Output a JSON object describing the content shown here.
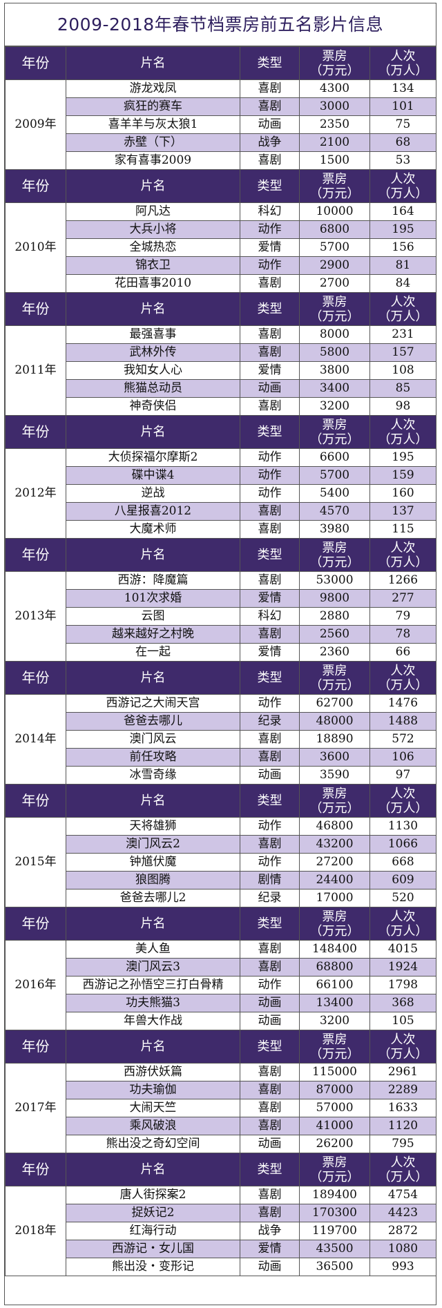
{
  "title": "2009-2018年春节档票房前五名影片信息",
  "header": {
    "year": "年份",
    "film": "片名",
    "genre": "类型",
    "box_office_line1": "票房",
    "box_office_line2": "（万元）",
    "admissions_line1": "人次",
    "admissions_line2": "（万人）"
  },
  "years": [
    {
      "year": "2009年",
      "films": [
        {
          "name": "游龙戏凤",
          "genre": "喜剧",
          "box_office": "4300",
          "admissions": "134"
        },
        {
          "name": "疯狂的赛车",
          "genre": "喜剧",
          "box_office": "3000",
          "admissions": "101"
        },
        {
          "name": "喜羊羊与灰太狼1",
          "genre": "动画",
          "box_office": "2350",
          "admissions": "75"
        },
        {
          "name": "赤壁（下）",
          "genre": "战争",
          "box_office": "2100",
          "admissions": "68"
        },
        {
          "name": "家有喜事2009",
          "genre": "喜剧",
          "box_office": "1500",
          "admissions": "53"
        }
      ]
    },
    {
      "year": "2010年",
      "films": [
        {
          "name": "阿凡达",
          "genre": "科幻",
          "box_office": "10000",
          "admissions": "164"
        },
        {
          "name": "大兵小将",
          "genre": "动作",
          "box_office": "6800",
          "admissions": "195"
        },
        {
          "name": "全城热恋",
          "genre": "爱情",
          "box_office": "5700",
          "admissions": "156"
        },
        {
          "name": "锦衣卫",
          "genre": "动作",
          "box_office": "2900",
          "admissions": "81"
        },
        {
          "name": "花田喜事2010",
          "genre": "喜剧",
          "box_office": "2700",
          "admissions": "84"
        }
      ]
    },
    {
      "year": "2011年",
      "films": [
        {
          "name": "最强喜事",
          "genre": "喜剧",
          "box_office": "8000",
          "admissions": "231"
        },
        {
          "name": "武林外传",
          "genre": "喜剧",
          "box_office": "5800",
          "admissions": "157"
        },
        {
          "name": "我知女人心",
          "genre": "爱情",
          "box_office": "3800",
          "admissions": "108"
        },
        {
          "name": "熊猫总动员",
          "genre": "动画",
          "box_office": "3400",
          "admissions": "85"
        },
        {
          "name": "神奇侠侣",
          "genre": "喜剧",
          "box_office": "3200",
          "admissions": "98"
        }
      ]
    },
    {
      "year": "2012年",
      "films": [
        {
          "name": "大侦探福尔摩斯2",
          "genre": "动作",
          "box_office": "6600",
          "admissions": "195"
        },
        {
          "name": "碟中谍4",
          "genre": "动作",
          "box_office": "5700",
          "admissions": "159"
        },
        {
          "name": "逆战",
          "genre": "动作",
          "box_office": "5400",
          "admissions": "160"
        },
        {
          "name": "八星报喜2012",
          "genre": "喜剧",
          "box_office": "4570",
          "admissions": "137"
        },
        {
          "name": "大魔术师",
          "genre": "喜剧",
          "box_office": "3980",
          "admissions": "115"
        }
      ]
    },
    {
      "year": "2013年",
      "films": [
        {
          "name": "西游：降魔篇",
          "genre": "喜剧",
          "box_office": "53000",
          "admissions": "1266"
        },
        {
          "name": "101次求婚",
          "genre": "爱情",
          "box_office": "9800",
          "admissions": "277"
        },
        {
          "name": "云图",
          "genre": "科幻",
          "box_office": "2880",
          "admissions": "79"
        },
        {
          "name": "越来越好之村晚",
          "genre": "喜剧",
          "box_office": "2560",
          "admissions": "78"
        },
        {
          "name": "在一起",
          "genre": "爱情",
          "box_office": "2360",
          "admissions": "66"
        }
      ]
    },
    {
      "year": "2014年",
      "films": [
        {
          "name": "西游记之大闹天宫",
          "genre": "动作",
          "box_office": "62700",
          "admissions": "1476"
        },
        {
          "name": "爸爸去哪儿",
          "genre": "纪录",
          "box_office": "48000",
          "admissions": "1488"
        },
        {
          "name": "澳门风云",
          "genre": "喜剧",
          "box_office": "18890",
          "admissions": "572"
        },
        {
          "name": "前任攻略",
          "genre": "喜剧",
          "box_office": "3600",
          "admissions": "106"
        },
        {
          "name": "冰雪奇缘",
          "genre": "动画",
          "box_office": "3590",
          "admissions": "97"
        }
      ]
    },
    {
      "year": "2015年",
      "films": [
        {
          "name": "天将雄狮",
          "genre": "动作",
          "box_office": "46800",
          "admissions": "1130"
        },
        {
          "name": "澳门风云2",
          "genre": "喜剧",
          "box_office": "43200",
          "admissions": "1066"
        },
        {
          "name": "钟馗伏魔",
          "genre": "动作",
          "box_office": "27200",
          "admissions": "668"
        },
        {
          "name": "狼图腾",
          "genre": "剧情",
          "box_office": "24400",
          "admissions": "609"
        },
        {
          "name": "爸爸去哪儿2",
          "genre": "纪录",
          "box_office": "17000",
          "admissions": "520"
        }
      ]
    },
    {
      "year": "2016年",
      "films": [
        {
          "name": "美人鱼",
          "genre": "喜剧",
          "box_office": "148400",
          "admissions": "4015"
        },
        {
          "name": "澳门风云3",
          "genre": "喜剧",
          "box_office": "68800",
          "admissions": "1924"
        },
        {
          "name": "西游记之孙悟空三打白骨精",
          "genre": "动作",
          "box_office": "66100",
          "admissions": "1798"
        },
        {
          "name": "功夫熊猫3",
          "genre": "动画",
          "box_office": "13400",
          "admissions": "368"
        },
        {
          "name": "年兽大作战",
          "genre": "动画",
          "box_office": "3200",
          "admissions": "105"
        }
      ]
    },
    {
      "year": "2017年",
      "films": [
        {
          "name": "西游伏妖篇",
          "genre": "喜剧",
          "box_office": "115000",
          "admissions": "2961"
        },
        {
          "name": "功夫瑜伽",
          "genre": "喜剧",
          "box_office": "87000",
          "admissions": "2289"
        },
        {
          "name": "大闹天竺",
          "genre": "喜剧",
          "box_office": "57000",
          "admissions": "1633"
        },
        {
          "name": "乘风破浪",
          "genre": "喜剧",
          "box_office": "41000",
          "admissions": "1120"
        },
        {
          "name": "熊出没之奇幻空间",
          "genre": "动画",
          "box_office": "26200",
          "admissions": "795"
        }
      ]
    },
    {
      "year": "2018年",
      "films": [
        {
          "name": "唐人街探案2",
          "genre": "喜剧",
          "box_office": "189400",
          "admissions": "4754"
        },
        {
          "name": "捉妖记2",
          "genre": "喜剧",
          "box_office": "170300",
          "admissions": "4423"
        },
        {
          "name": "红海行动",
          "genre": "战争",
          "box_office": "119700",
          "admissions": "2872"
        },
        {
          "name": "西游记・女儿国",
          "genre": "爱情",
          "box_office": "43500",
          "admissions": "1080"
        },
        {
          "name": "熊出没・变形记",
          "genre": "动画",
          "box_office": "36500",
          "admissions": "993"
        }
      ]
    }
  ]
}
